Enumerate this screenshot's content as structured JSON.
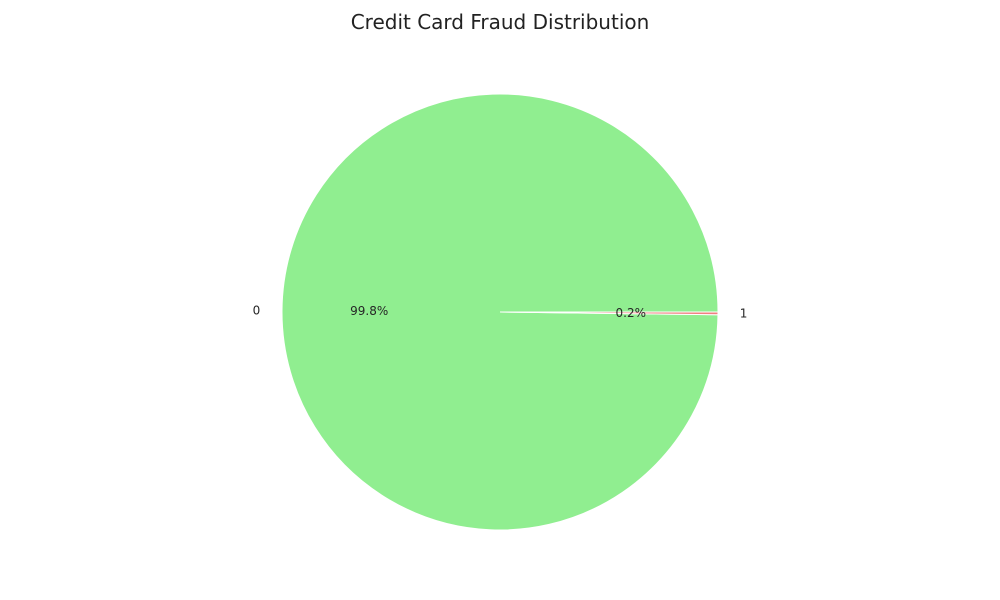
{
  "chart_data": {
    "type": "pie",
    "title": "Credit Card Fraud Distribution",
    "labels": [
      "0",
      "1"
    ],
    "values": [
      99.8,
      0.2
    ],
    "percent_labels": [
      "99.8%",
      "0.2%"
    ],
    "colors": [
      "#90ee90",
      "#f08080"
    ],
    "wedge_edge_color": "#ffffff",
    "start_angle_deg": 0,
    "direction": "counterclockwise"
  }
}
